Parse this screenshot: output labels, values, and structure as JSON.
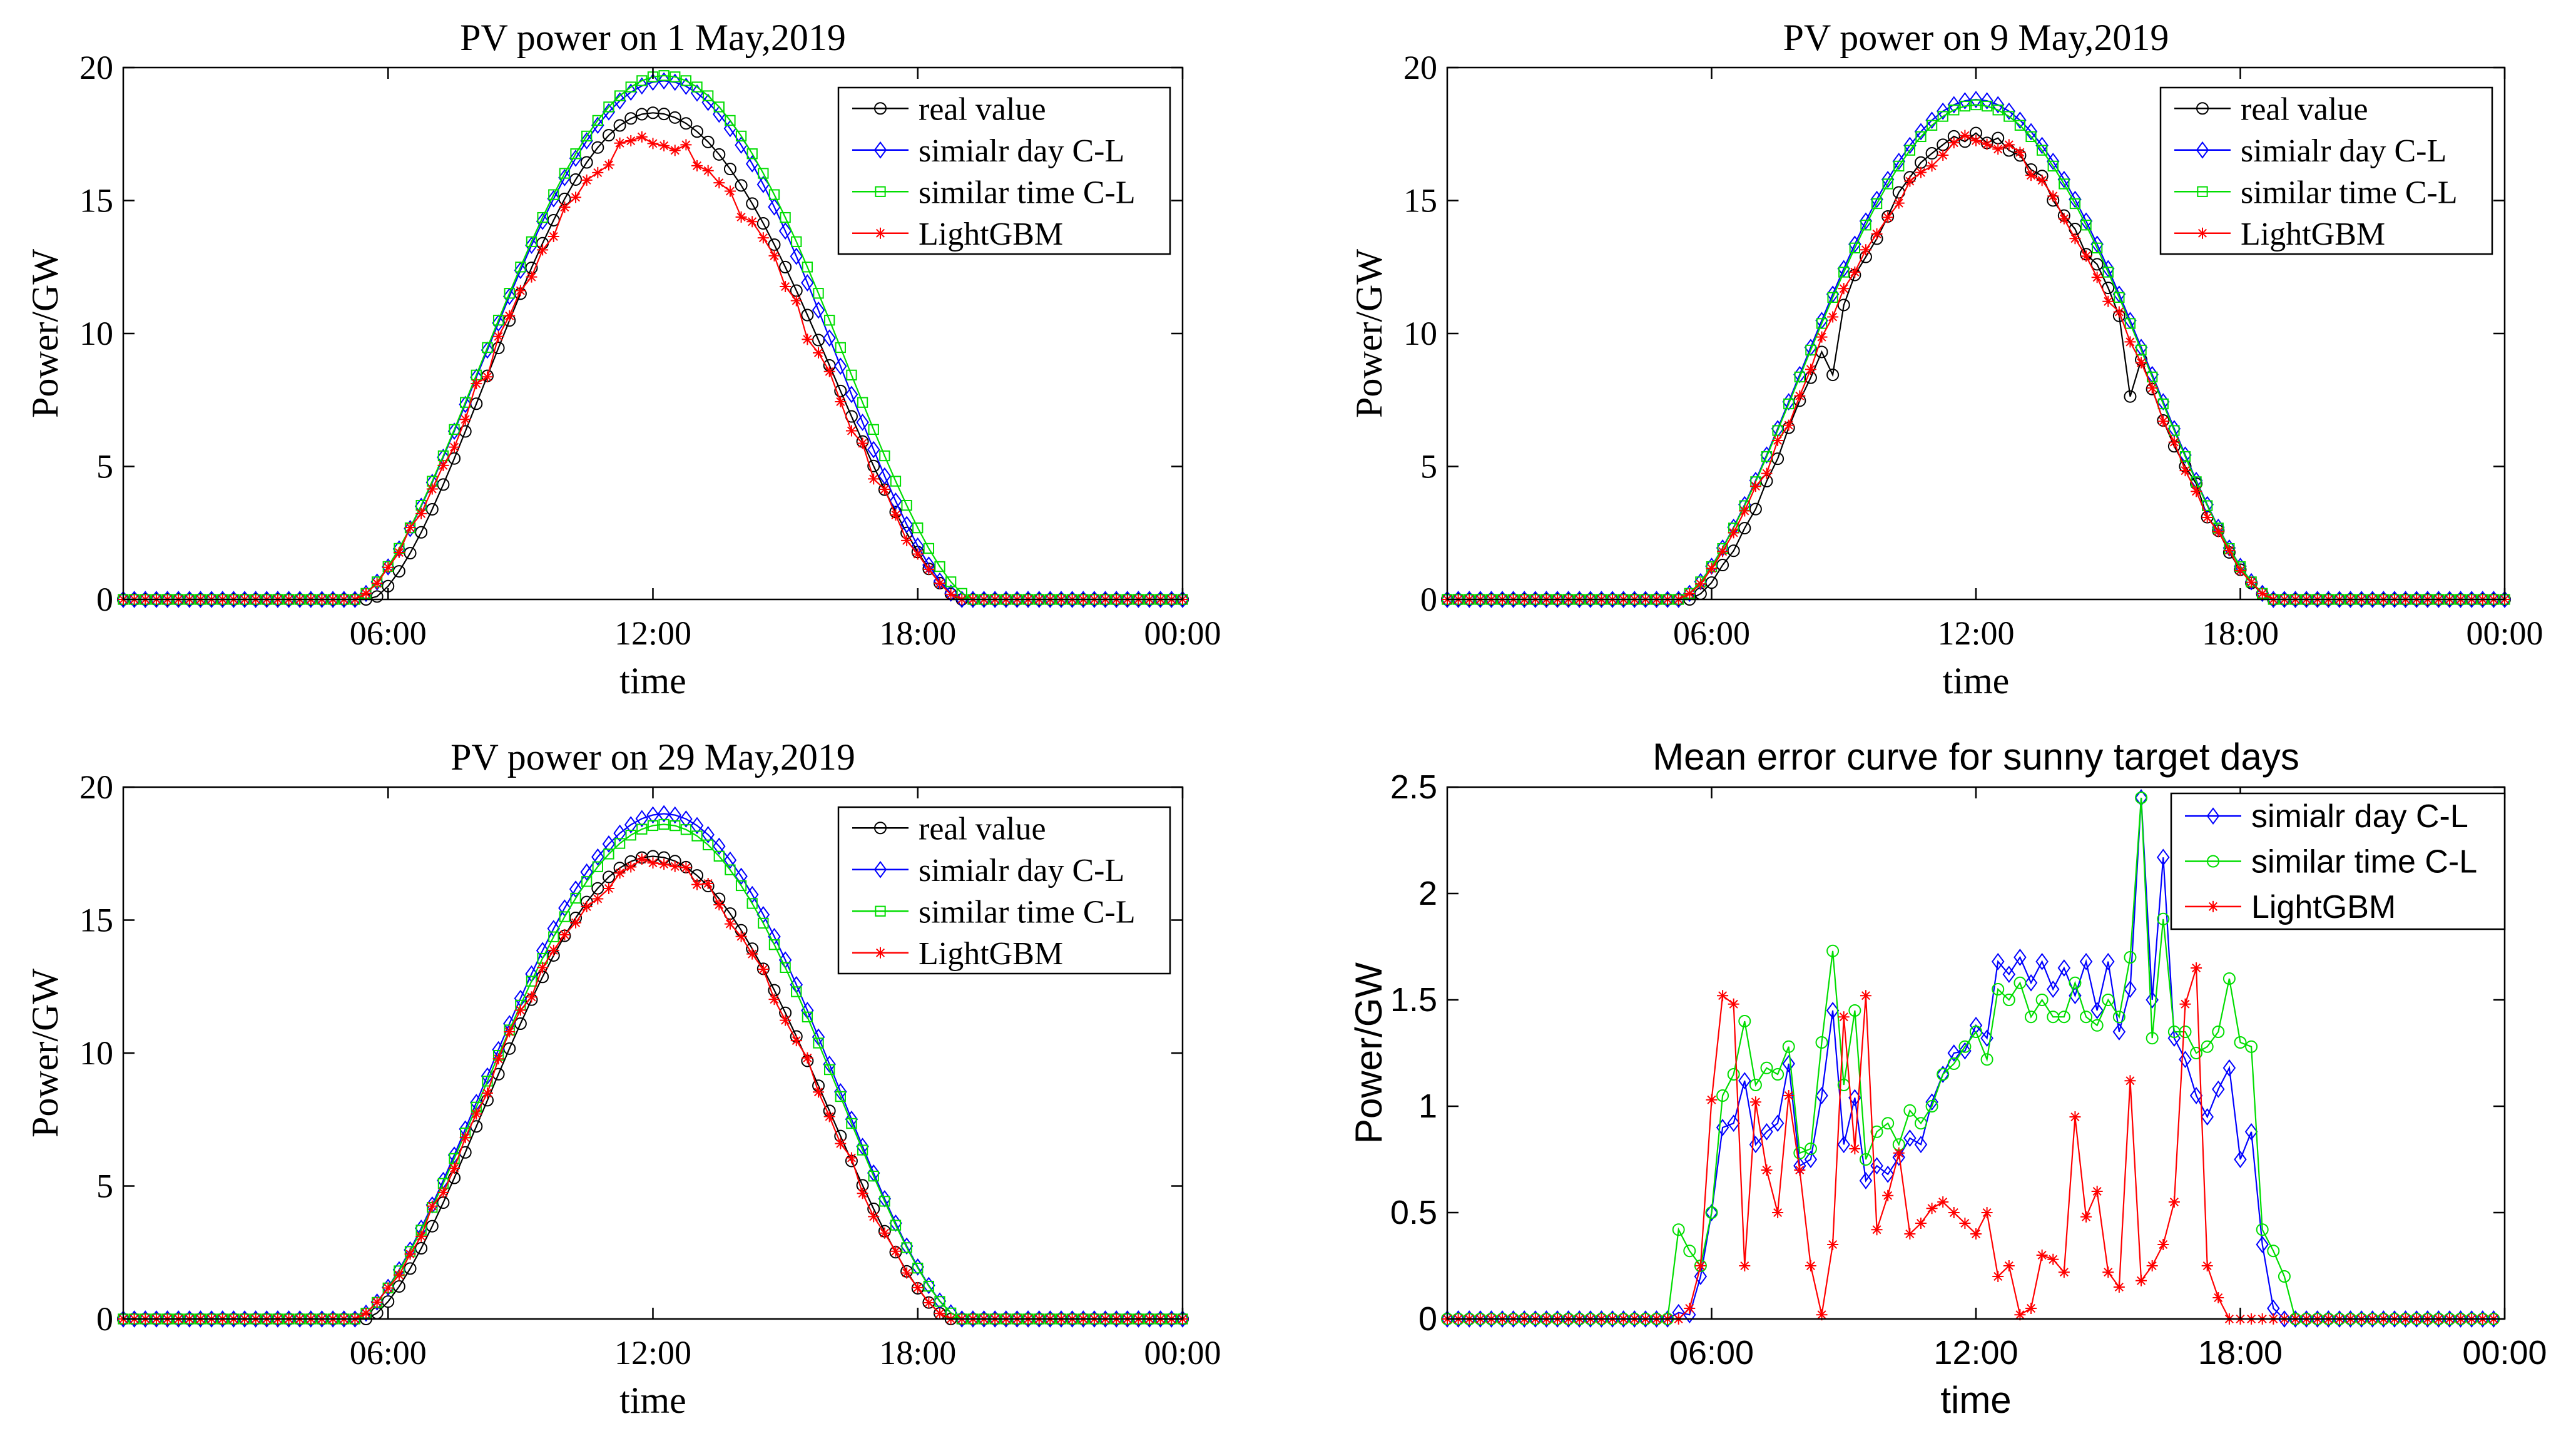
{
  "figure": {
    "fonts": [
      "serif",
      "serif",
      "serif",
      "sans"
    ],
    "xlabel": "time",
    "ylabel": "Power/GW"
  },
  "chart_data": [
    {
      "type": "line",
      "title": "PV power on 1 May,2019",
      "xlabel": "time",
      "ylabel": "Power/GW",
      "xlim": [
        0,
        24
      ],
      "ylim": [
        0,
        20
      ],
      "xticks": [
        6,
        12,
        18,
        24
      ],
      "xtick_labels": [
        "06:00",
        "12:00",
        "18:00",
        "00:00"
      ],
      "yticks": [
        0,
        5,
        10,
        15,
        20
      ],
      "ytick_labels": [
        "0",
        "5",
        "10",
        "15",
        "20"
      ],
      "legend_position": "top-right",
      "x_step_hours": 0.25,
      "series": [
        {
          "name": "real value",
          "color": "#000000",
          "marker": "circle",
          "start": 5.6,
          "end": 19.0,
          "peak_time": 12.0,
          "peak": 18.3,
          "dip": [],
          "noise": 0
        },
        {
          "name": "simialr day C-L",
          "color": "#0000ff",
          "marker": "diamond",
          "start": 5.25,
          "end": 19.0,
          "peak_time": 12.25,
          "peak": 19.5,
          "dip": [],
          "noise": 0
        },
        {
          "name": "similar time C-L",
          "color": "#00dd00",
          "marker": "square",
          "start": 5.25,
          "end": 19.25,
          "peak_time": 12.25,
          "peak": 19.7,
          "dip": [],
          "noise": 0
        },
        {
          "name": "LightGBM",
          "color": "#ff0000",
          "marker": "star",
          "start": 5.25,
          "end": 19.0,
          "peak_time": 12.0,
          "peak": 17.3,
          "dip": [],
          "noise": 0.35
        }
      ]
    },
    {
      "type": "line",
      "title": "PV power on 9 May,2019",
      "xlabel": "time",
      "ylabel": "Power/GW",
      "xlim": [
        0,
        24
      ],
      "ylim": [
        0,
        20
      ],
      "xticks": [
        6,
        12,
        18,
        24
      ],
      "xtick_labels": [
        "06:00",
        "12:00",
        "18:00",
        "00:00"
      ],
      "yticks": [
        0,
        5,
        10,
        15,
        20
      ],
      "ytick_labels": [
        "0",
        "5",
        "10",
        "15",
        "20"
      ],
      "legend_position": "top-right",
      "x_step_hours": 0.25,
      "series": [
        {
          "name": "real value",
          "color": "#000000",
          "marker": "circle",
          "start": 5.5,
          "end": 18.75,
          "peak_time": 12.0,
          "peak": 17.4,
          "dip": [
            [
              8.75,
              1.6
            ],
            [
              15.5,
              2.2
            ]
          ],
          "noise": 0.25
        },
        {
          "name": "simialr day C-L",
          "color": "#0000ff",
          "marker": "diamond",
          "start": 5.25,
          "end": 18.75,
          "peak_time": 12.0,
          "peak": 18.8,
          "dip": [],
          "noise": 0
        },
        {
          "name": "similar time C-L",
          "color": "#00dd00",
          "marker": "square",
          "start": 5.25,
          "end": 18.75,
          "peak_time": 12.0,
          "peak": 18.6,
          "dip": [],
          "noise": 0
        },
        {
          "name": "LightGBM",
          "color": "#ff0000",
          "marker": "star",
          "start": 5.25,
          "end": 18.75,
          "peak_time": 12.0,
          "peak": 17.3,
          "dip": [],
          "noise": 0.3
        }
      ]
    },
    {
      "type": "line",
      "title": "PV power on 29 May,2019",
      "xlabel": "time",
      "ylabel": "Power/GW",
      "xlim": [
        0,
        24
      ],
      "ylim": [
        0,
        20
      ],
      "xticks": [
        6,
        12,
        18,
        24
      ],
      "xtick_labels": [
        "06:00",
        "12:00",
        "18:00",
        "00:00"
      ],
      "yticks": [
        0,
        5,
        10,
        15,
        20
      ],
      "ytick_labels": [
        "0",
        "5",
        "10",
        "15",
        "20"
      ],
      "legend_position": "top-right",
      "x_step_hours": 0.25,
      "series": [
        {
          "name": "real value",
          "color": "#000000",
          "marker": "circle",
          "start": 5.5,
          "end": 18.75,
          "peak_time": 12.0,
          "peak": 17.4,
          "dip": [],
          "noise": 0
        },
        {
          "name": "simialr day C-L",
          "color": "#0000ff",
          "marker": "diamond",
          "start": 5.25,
          "end": 19.0,
          "peak_time": 12.25,
          "peak": 19.0,
          "dip": [],
          "noise": 0
        },
        {
          "name": "similar time C-L",
          "color": "#00dd00",
          "marker": "square",
          "start": 5.25,
          "end": 19.0,
          "peak_time": 12.25,
          "peak": 18.6,
          "dip": [],
          "noise": 0
        },
        {
          "name": "LightGBM",
          "color": "#ff0000",
          "marker": "star",
          "start": 5.25,
          "end": 18.75,
          "peak_time": 12.0,
          "peak": 17.2,
          "dip": [],
          "noise": 0.3
        }
      ]
    },
    {
      "type": "line",
      "title": "Mean error curve for sunny target days",
      "xlabel": "time",
      "ylabel": "Power/GW",
      "xlim": [
        0,
        24
      ],
      "ylim": [
        0,
        2.5
      ],
      "xticks": [
        6,
        12,
        18,
        24
      ],
      "xtick_labels": [
        "06:00",
        "12:00",
        "18:00",
        "00:00"
      ],
      "yticks": [
        0,
        0.5,
        1,
        1.5,
        2,
        2.5
      ],
      "ytick_labels": [
        "0",
        "0.5",
        "1",
        "1.5",
        "2",
        "2.5"
      ],
      "legend_position": "top-right",
      "x_step_hours": 0.25,
      "series": [
        {
          "name": "simialr day C-L",
          "color": "#0000ff",
          "marker": "diamond",
          "values": [
            0,
            0,
            0,
            0,
            0,
            0,
            0,
            0,
            0,
            0,
            0,
            0,
            0,
            0,
            0,
            0,
            0,
            0,
            0,
            0,
            0,
            0.03,
            0.02,
            0.2,
            0.5,
            0.9,
            0.92,
            1.12,
            0.82,
            0.88,
            0.92,
            1.2,
            0.72,
            0.75,
            1.05,
            1.45,
            0.82,
            1.04,
            0.65,
            0.72,
            0.68,
            0.76,
            0.85,
            0.82,
            1.02,
            1.15,
            1.25,
            1.26,
            1.38,
            1.32,
            1.68,
            1.62,
            1.7,
            1.58,
            1.68,
            1.55,
            1.65,
            1.52,
            1.68,
            1.45,
            1.68,
            1.35,
            1.55,
            2.45,
            1.5,
            2.17,
            1.32,
            1.22,
            1.05,
            0.95,
            1.08,
            1.18,
            0.75,
            0.88,
            0.35,
            0.05,
            0,
            0,
            0,
            0,
            0,
            0,
            0,
            0,
            0,
            0,
            0,
            0,
            0,
            0,
            0,
            0,
            0,
            0,
            0,
            0
          ]
        },
        {
          "name": "similar time C-L",
          "color": "#00dd00",
          "marker": "circle",
          "values": [
            0,
            0,
            0,
            0,
            0,
            0,
            0,
            0,
            0,
            0,
            0,
            0,
            0,
            0,
            0,
            0,
            0,
            0,
            0,
            0,
            0,
            0.42,
            0.32,
            0.25,
            0.5,
            1.05,
            1.15,
            1.4,
            1.1,
            1.18,
            1.15,
            1.28,
            0.78,
            0.8,
            1.3,
            1.73,
            1.1,
            1.45,
            0.75,
            0.88,
            0.92,
            0.82,
            0.98,
            0.92,
            1.0,
            1.15,
            1.2,
            1.28,
            1.35,
            1.22,
            1.55,
            1.5,
            1.58,
            1.42,
            1.5,
            1.42,
            1.42,
            1.58,
            1.42,
            1.38,
            1.5,
            1.42,
            1.7,
            2.45,
            1.32,
            1.88,
            1.35,
            1.35,
            1.25,
            1.28,
            1.35,
            1.6,
            1.3,
            1.28,
            0.42,
            0.32,
            0.2,
            0,
            0,
            0,
            0,
            0,
            0,
            0,
            0,
            0,
            0,
            0,
            0,
            0,
            0,
            0,
            0,
            0,
            0,
            0
          ]
        },
        {
          "name": "LightGBM",
          "color": "#ff0000",
          "marker": "star",
          "values": [
            0,
            0,
            0,
            0,
            0,
            0,
            0,
            0,
            0,
            0,
            0,
            0,
            0,
            0,
            0,
            0,
            0,
            0,
            0,
            0,
            0,
            0,
            0.05,
            0.25,
            1.03,
            1.52,
            1.48,
            0.25,
            1.02,
            0.7,
            0.5,
            1.05,
            0.7,
            0.25,
            0.02,
            0.35,
            1.42,
            0.8,
            1.52,
            0.42,
            0.58,
            0.78,
            0.4,
            0.45,
            0.52,
            0.55,
            0.5,
            0.45,
            0.4,
            0.5,
            0.2,
            0.25,
            0.02,
            0.05,
            0.3,
            0.28,
            0.22,
            0.95,
            0.48,
            0.6,
            0.22,
            0.15,
            1.12,
            0.18,
            0.25,
            0.35,
            0.55,
            1.48,
            1.65,
            0.25,
            0.1,
            0,
            0,
            0,
            0,
            0,
            0,
            0,
            0,
            0,
            0,
            0,
            0,
            0,
            0,
            0,
            0,
            0,
            0,
            0,
            0,
            0,
            0,
            0,
            0,
            0
          ]
        }
      ]
    }
  ]
}
